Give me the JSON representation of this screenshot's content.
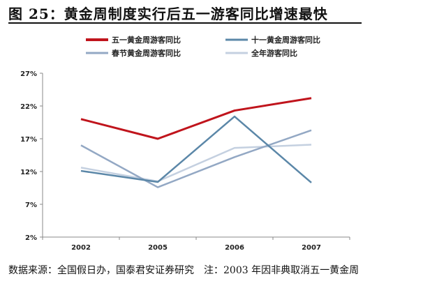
{
  "title": "图 25：黄金周制度实行后五一游客同比增速最快",
  "footer": "数据来源：全国假日办，国泰君安证券研究　注：2003 年因非典取消五一黄金周",
  "chart_data": {
    "type": "line",
    "title": "图 25：黄金周制度实行后五一游客同比增速最快",
    "xlabel": "",
    "ylabel": "",
    "categories": [
      "2002",
      "2005",
      "2006",
      "2007"
    ],
    "ylim": [
      2,
      27
    ],
    "yticks": [
      2,
      7,
      12,
      17,
      22,
      27
    ],
    "ytick_labels": [
      "2%",
      "7%",
      "12%",
      "17%",
      "22%",
      "27%"
    ],
    "legend_position": "top",
    "series": [
      {
        "name": "五一黄金周游客同比",
        "color": "#c0141c",
        "width": 3,
        "values": [
          20.0,
          17.0,
          21.3,
          23.2
        ]
      },
      {
        "name": "十一黄金周游客同比",
        "color": "#5b87a8",
        "width": 2.5,
        "values": [
          12.1,
          10.4,
          20.4,
          10.3
        ]
      },
      {
        "name": "春节黄金周游客同比",
        "color": "#93a8c4",
        "width": 2.5,
        "values": [
          16.0,
          9.6,
          14.2,
          18.3
        ]
      },
      {
        "name": "全年游客同比",
        "color": "#c4d0e0",
        "width": 2.5,
        "values": [
          12.6,
          10.5,
          15.6,
          16.1
        ]
      }
    ]
  }
}
